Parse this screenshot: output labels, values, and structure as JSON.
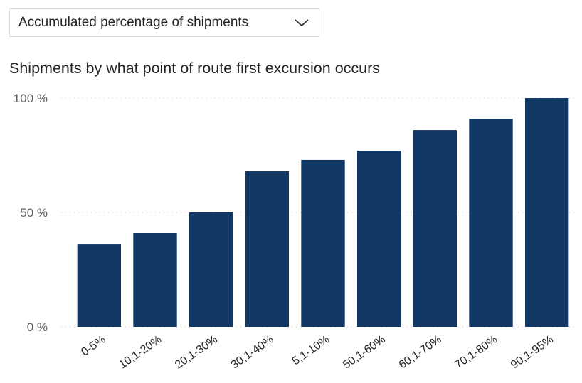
{
  "filter": {
    "selected": "Accumulated percentage of shipments"
  },
  "icons": {
    "dropdown": "chevron-down-icon"
  },
  "colors": {
    "bar": "#113764",
    "grid": "#c8c6c4"
  },
  "chart_data": {
    "type": "bar",
    "title": "Shipments by what point of route first excursion occurs",
    "xlabel": "",
    "ylabel": "",
    "categories": [
      "0-5%",
      "10,1-20%",
      "20,1-30%",
      "30,1-40%",
      "5,1-10%",
      "50,1-60%",
      "60,1-70%",
      "70,1-80%",
      "90,1-95%"
    ],
    "values": [
      36,
      41,
      50,
      68,
      73,
      77,
      86,
      91,
      100
    ],
    "ylim": [
      0,
      100
    ],
    "yticks": [
      0,
      50,
      100
    ],
    "ytick_labels": [
      "0 %",
      "50 %",
      "100 %"
    ],
    "grid": true,
    "legend": "none"
  }
}
